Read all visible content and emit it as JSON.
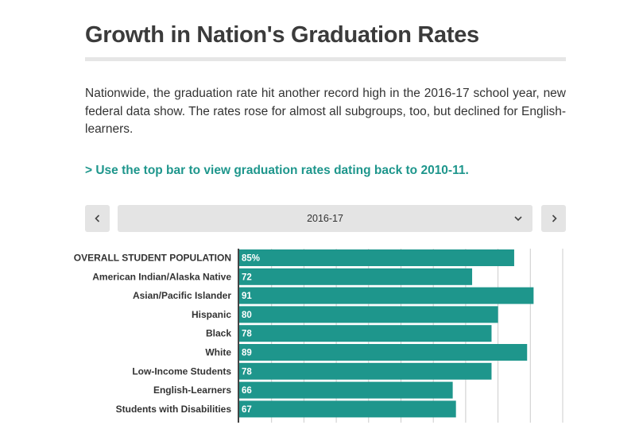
{
  "header": {
    "title": "Growth in Nation's Graduation Rates",
    "intro": "Nationwide, the graduation rate hit another record high in the 2016-17 school year, new federal data show. The rates rose for almost all subgroups, too, but declined for English-learners.",
    "cta": "> Use the top bar to view graduation rates dating back to 2010-11."
  },
  "controls": {
    "selected_year": "2016-17",
    "prev_icon": "chevron-left-icon",
    "next_icon": "chevron-right-icon",
    "dropdown_icon": "chevron-down-icon"
  },
  "colors": {
    "bar": "#1e968c",
    "accent_text": "#1e968c",
    "control_bg": "#e4e4e4",
    "gridline": "#cccccc",
    "axis": "#444444"
  },
  "chart_data": {
    "type": "bar",
    "orientation": "horizontal",
    "categories": [
      "OVERALL STUDENT POPULATION",
      "American Indian/Alaska Native",
      "Asian/Pacific Islander",
      "Hispanic",
      "Black",
      "White",
      "Low-Income Students",
      "English-Learners",
      "Students with Disabilities"
    ],
    "values": [
      85,
      72,
      91,
      80,
      78,
      89,
      78,
      66,
      67
    ],
    "value_labels": [
      "85%",
      "72",
      "91",
      "80",
      "78",
      "89",
      "78",
      "66",
      "67"
    ],
    "xlim": [
      0,
      100
    ],
    "grid": true
  }
}
